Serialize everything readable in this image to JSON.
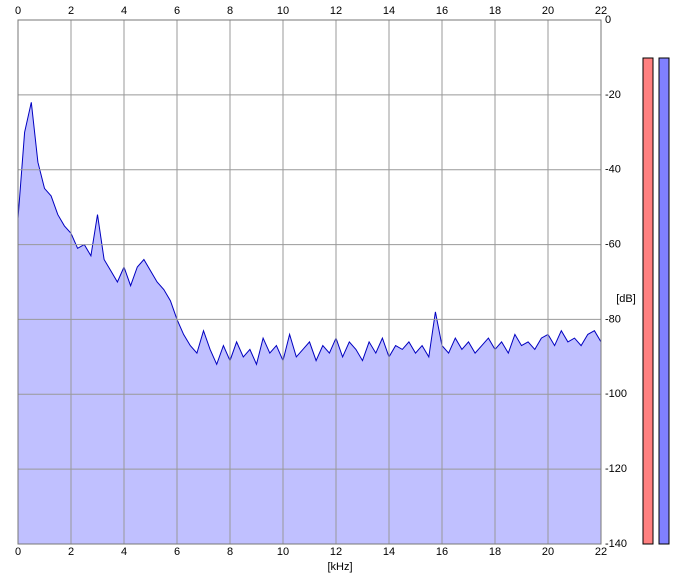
{
  "chart_data": {
    "type": "area",
    "x_label": "[kHz]",
    "y_label": "[dB]",
    "x": [
      0,
      0.25,
      0.5,
      0.75,
      1,
      1.25,
      1.5,
      1.75,
      2,
      2.25,
      2.5,
      2.75,
      3,
      3.25,
      3.5,
      3.75,
      4,
      4.25,
      4.5,
      4.75,
      5,
      5.25,
      5.5,
      5.75,
      6,
      6.25,
      6.5,
      6.75,
      7,
      7.25,
      7.5,
      7.75,
      8,
      8.25,
      8.5,
      8.75,
      9,
      9.25,
      9.5,
      9.75,
      10,
      10.25,
      10.5,
      10.75,
      11,
      11.25,
      11.5,
      11.75,
      12,
      12.25,
      12.5,
      12.75,
      13,
      13.25,
      13.5,
      13.75,
      14,
      14.25,
      14.5,
      14.75,
      15,
      15.25,
      15.5,
      15.75,
      16,
      16.25,
      16.5,
      16.75,
      17,
      17.25,
      17.5,
      17.75,
      18,
      18.25,
      18.5,
      18.75,
      19,
      19.25,
      19.5,
      19.75,
      20,
      20.25,
      20.5,
      20.75,
      21,
      21.25,
      21.5,
      21.75,
      22
    ],
    "series": [
      {
        "color": "#0000c0",
        "fill": "#c0c0ff",
        "values": [
          -53,
          -30,
          -22,
          -38,
          -45,
          -47,
          -52,
          -55,
          -57,
          -61,
          -60,
          -63,
          -52,
          -64,
          -67,
          -70,
          -66,
          -71,
          -66,
          -64,
          -67,
          -70,
          -72,
          -75,
          -80,
          -84,
          -87,
          -89,
          -83,
          -88,
          -92,
          -87,
          -91,
          -86,
          -90,
          -88,
          -92,
          -85,
          -89,
          -87,
          -91,
          -84,
          -90,
          -88,
          -86,
          -91,
          -87,
          -89,
          -85,
          -90,
          -86,
          -88,
          -91,
          -86,
          -89,
          -85,
          -90,
          -87,
          -88,
          -86,
          -89,
          -87,
          -90,
          -78,
          -87,
          -89,
          -85,
          -88,
          -86,
          -89,
          -87,
          -85,
          -88,
          -86,
          -89,
          -84,
          -87,
          -86,
          -88,
          -85,
          -84,
          -87,
          -83,
          -86,
          -85,
          -87,
          -84,
          -83,
          -86
        ]
      }
    ],
    "xlim": [
      0,
      22
    ],
    "xticks": [
      0,
      2,
      4,
      6,
      8,
      10,
      12,
      14,
      16,
      18,
      20,
      22
    ],
    "ylim": [
      -140,
      0
    ],
    "yticks": [
      0,
      -20,
      -40,
      -60,
      -80,
      -100,
      -120,
      -140
    ],
    "grid": true
  }
}
